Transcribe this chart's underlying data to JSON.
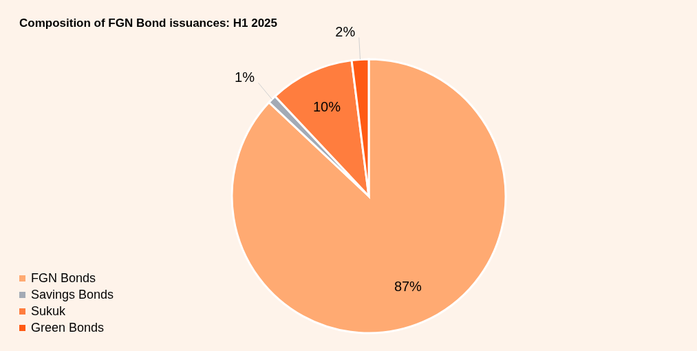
{
  "chart_data": {
    "type": "pie",
    "title": "Composition of FGN Bond issuances: H1 2025",
    "categories": [
      "FGN Bonds",
      "Savings Bonds",
      "Sukuk",
      "Green Bonds"
    ],
    "values": [
      87,
      1,
      10,
      2
    ],
    "value_labels": [
      "87%",
      "1%",
      "10%",
      "2%"
    ],
    "colors": [
      "#ffaa72",
      "#a3aab5",
      "#ff7d3e",
      "#ff5a14"
    ],
    "legend": "bottom left"
  }
}
